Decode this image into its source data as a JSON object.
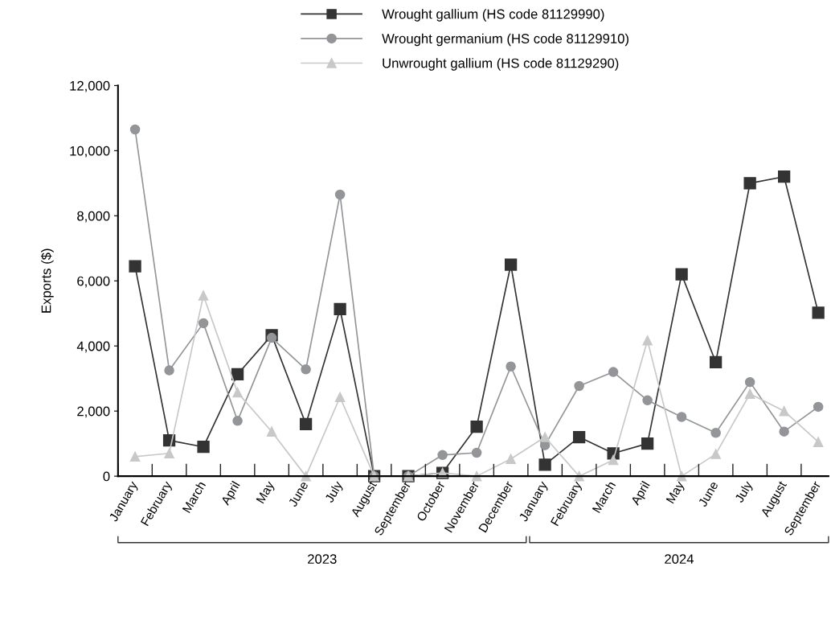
{
  "chart_data": {
    "type": "line",
    "categories": [
      "January",
      "February",
      "March",
      "April",
      "May",
      "June",
      "July",
      "August",
      "September",
      "October",
      "November",
      "December",
      "January",
      "February",
      "March",
      "April",
      "May",
      "June",
      "July",
      "August",
      "September"
    ],
    "ylabel": "Exports ($)",
    "ylim": [
      0,
      12000
    ],
    "yticks": [
      0,
      {
        "value": 2000,
        "label": "2,000"
      },
      {
        "value": 4000,
        "label": "4,000"
      },
      {
        "value": 6000,
        "label": "6,000"
      },
      {
        "value": 8000,
        "label": "8,000"
      },
      {
        "value": 10000,
        "label": "10,000"
      },
      {
        "value": 12000,
        "label": "12,000"
      }
    ],
    "grid": false,
    "legend": "top",
    "line_style": "solid",
    "annotations": [
      "2023",
      "2024"
    ],
    "series": [
      {
        "name": "Wrought gallium (HS code 81129990)",
        "color": "#333333",
        "marker": "square",
        "values": [
          6450,
          1100,
          900,
          3130,
          4330,
          1600,
          5130,
          0,
          0,
          100,
          1520,
          6500,
          350,
          1200,
          700,
          1000,
          6200,
          3500,
          9000,
          9200,
          5020
        ]
      },
      {
        "name": "Wrought germanium (HS code 81129910)",
        "color": "#939598",
        "marker": "circle",
        "values": [
          10650,
          3250,
          4700,
          1700,
          4250,
          3280,
          8650,
          0,
          0,
          650,
          720,
          3370,
          950,
          2770,
          3200,
          2330,
          1820,
          1330,
          2890,
          1370,
          2130
        ]
      },
      {
        "name": "Unwrought gallium (HS code 81129290)",
        "color": "#c8c8c8",
        "marker": "triangle",
        "values": [
          600,
          700,
          5550,
          2570,
          1370,
          0,
          2430,
          0,
          0,
          100,
          0,
          530,
          1200,
          0,
          500,
          4170,
          0,
          680,
          2530,
          2000,
          1050
        ]
      }
    ]
  }
}
